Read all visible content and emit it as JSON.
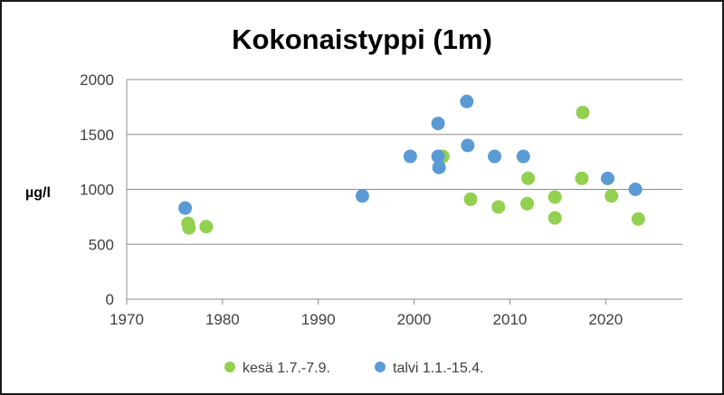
{
  "chart_data": {
    "type": "scatter",
    "title": "Kokonaistyppi (1m)",
    "xlabel": "",
    "ylabel": "µg/l",
    "xlim": [
      1970,
      2028
    ],
    "ylim": [
      0,
      2000
    ],
    "xticks": [
      1970,
      1980,
      1990,
      2000,
      2010,
      2020
    ],
    "yticks": [
      0,
      500,
      1000,
      1500,
      2000
    ],
    "grid": "horizontal",
    "legend_position": "bottom",
    "series": [
      {
        "name": "kesä 1.7.-7.9.",
        "color": "#92d050",
        "points": [
          [
            1976.4,
            690
          ],
          [
            1976.5,
            650
          ],
          [
            1978.3,
            660
          ],
          [
            2003.0,
            1300
          ],
          [
            2005.9,
            910
          ],
          [
            2008.8,
            840
          ],
          [
            2011.8,
            870
          ],
          [
            2011.9,
            1100
          ],
          [
            2014.7,
            930
          ],
          [
            2014.7,
            740
          ],
          [
            2017.5,
            1100
          ],
          [
            2017.6,
            1700
          ],
          [
            2020.6,
            940
          ],
          [
            2023.4,
            730
          ]
        ]
      },
      {
        "name": "talvi 1.1.-15.4.",
        "color": "#5b9bd5",
        "points": [
          [
            1976.1,
            830
          ],
          [
            1994.6,
            940
          ],
          [
            1999.6,
            1300
          ],
          [
            2002.5,
            1600
          ],
          [
            2002.5,
            1300
          ],
          [
            2002.6,
            1200
          ],
          [
            2005.5,
            1800
          ],
          [
            2005.6,
            1400
          ],
          [
            2008.4,
            1300
          ],
          [
            2011.4,
            1300
          ],
          [
            2020.2,
            1100
          ],
          [
            2023.1,
            1000
          ]
        ]
      }
    ]
  }
}
